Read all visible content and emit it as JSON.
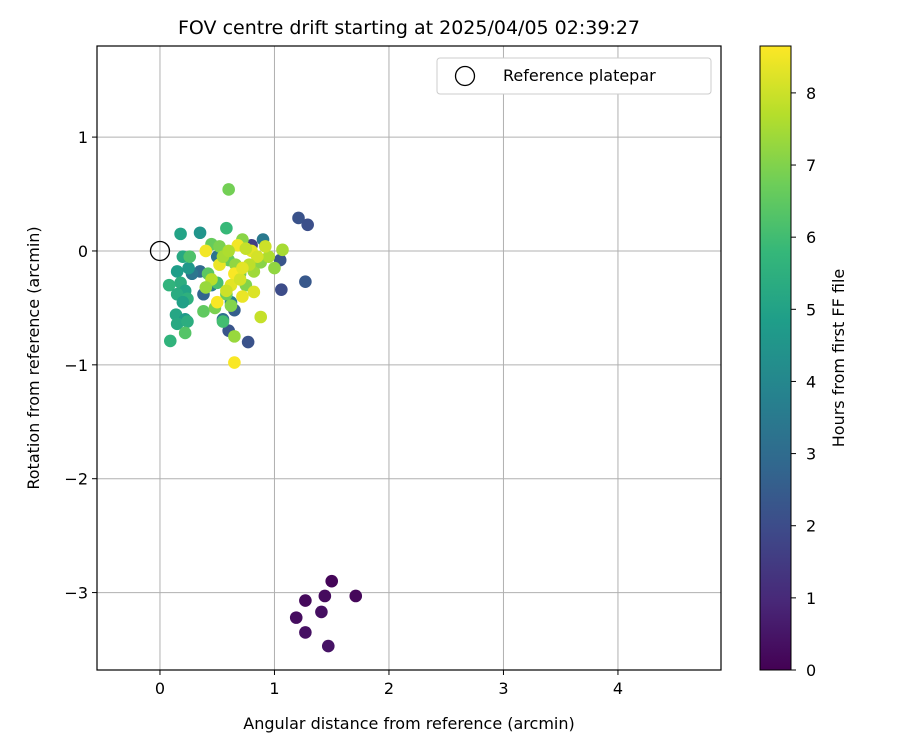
{
  "chart_data": {
    "type": "scatter",
    "title": "FOV centre drift starting at 2025/04/05 02:39:27",
    "xlabel": "Angular distance from reference (arcmin)",
    "ylabel": "Rotation from reference (arcmin)",
    "xlim": [
      -0.55,
      4.9
    ],
    "ylim": [
      -3.68,
      1.8
    ],
    "xticks": [
      0,
      1,
      2,
      3,
      4
    ],
    "xtick_labels": [
      "0",
      "1",
      "2",
      "3",
      "4"
    ],
    "yticks": [
      1,
      0,
      -1,
      -2,
      -3
    ],
    "ytick_labels": [
      "1",
      "0",
      "−1",
      "−2",
      "−3"
    ],
    "grid": true,
    "legend": {
      "position": "top-right",
      "entries": [
        "Reference platepar"
      ]
    },
    "reference_point": {
      "x": 0,
      "y": 0
    },
    "colorbar": {
      "label": "Hours from first FF file",
      "range": [
        0,
        8.65
      ],
      "ticks": [
        0,
        1,
        2,
        3,
        4,
        5,
        6,
        7,
        8
      ],
      "colormap": [
        "#440154",
        "#482878",
        "#3e4989",
        "#31688e",
        "#26828e",
        "#1f9e89",
        "#35b779",
        "#6ece58",
        "#b5de2b",
        "#fde725"
      ]
    },
    "points": [
      {
        "x": 1.5,
        "y": -2.9,
        "h": 0.1
      },
      {
        "x": 1.71,
        "y": -3.03,
        "h": 0.15
      },
      {
        "x": 1.27,
        "y": -3.07,
        "h": 0.2
      },
      {
        "x": 1.44,
        "y": -3.03,
        "h": 0.25
      },
      {
        "x": 1.19,
        "y": -3.22,
        "h": 0.3
      },
      {
        "x": 1.41,
        "y": -3.17,
        "h": 0.35
      },
      {
        "x": 1.27,
        "y": -3.35,
        "h": 0.4
      },
      {
        "x": 1.47,
        "y": -3.47,
        "h": 0.45
      },
      {
        "x": 0.8,
        "y": 0.05,
        "h": 1.6
      },
      {
        "x": 1.21,
        "y": 0.29,
        "h": 2.2
      },
      {
        "x": 1.29,
        "y": 0.23,
        "h": 2.1
      },
      {
        "x": 1.05,
        "y": -0.08,
        "h": 2.3
      },
      {
        "x": 1.27,
        "y": -0.27,
        "h": 2.4
      },
      {
        "x": 1.06,
        "y": -0.34,
        "h": 2.0
      },
      {
        "x": 0.77,
        "y": -0.8,
        "h": 2.2
      },
      {
        "x": 0.6,
        "y": -0.7,
        "h": 2.3
      },
      {
        "x": 0.65,
        "y": -0.52,
        "h": 2.6
      },
      {
        "x": 0.38,
        "y": -0.38,
        "h": 2.8
      },
      {
        "x": 0.35,
        "y": -0.18,
        "h": 3.0
      },
      {
        "x": 0.55,
        "y": -0.6,
        "h": 3.2
      },
      {
        "x": 0.28,
        "y": -0.2,
        "h": 3.4
      },
      {
        "x": 0.45,
        "y": -0.3,
        "h": 3.6
      },
      {
        "x": 0.62,
        "y": -0.45,
        "h": 3.8
      },
      {
        "x": 0.5,
        "y": -0.05,
        "h": 3.3
      },
      {
        "x": 0.9,
        "y": 0.1,
        "h": 3.5
      },
      {
        "x": 0.35,
        "y": 0.16,
        "h": 4.5
      },
      {
        "x": 0.18,
        "y": 0.15,
        "h": 5.0
      },
      {
        "x": 0.2,
        "y": -0.05,
        "h": 5.2
      },
      {
        "x": 0.15,
        "y": -0.18,
        "h": 4.8
      },
      {
        "x": 0.25,
        "y": -0.15,
        "h": 4.6
      },
      {
        "x": 0.18,
        "y": -0.28,
        "h": 5.4
      },
      {
        "x": 0.08,
        "y": -0.3,
        "h": 5.6
      },
      {
        "x": 0.22,
        "y": -0.35,
        "h": 5.0
      },
      {
        "x": 0.15,
        "y": -0.38,
        "h": 5.3
      },
      {
        "x": 0.24,
        "y": -0.42,
        "h": 5.5
      },
      {
        "x": 0.2,
        "y": -0.45,
        "h": 4.9
      },
      {
        "x": 0.14,
        "y": -0.56,
        "h": 5.1
      },
      {
        "x": 0.22,
        "y": -0.6,
        "h": 4.7
      },
      {
        "x": 0.15,
        "y": -0.64,
        "h": 5.2
      },
      {
        "x": 0.24,
        "y": -0.62,
        "h": 5.4
      },
      {
        "x": 0.09,
        "y": -0.79,
        "h": 5.6
      },
      {
        "x": 0.22,
        "y": -0.72,
        "h": 6.3
      },
      {
        "x": 0.38,
        "y": -0.53,
        "h": 6.5
      },
      {
        "x": 0.55,
        "y": -0.62,
        "h": 6.0
      },
      {
        "x": 0.65,
        "y": -0.75,
        "h": 7.3
      },
      {
        "x": 0.58,
        "y": 0.2,
        "h": 5.8
      },
      {
        "x": 0.6,
        "y": 0.54,
        "h": 6.8
      },
      {
        "x": 0.26,
        "y": -0.05,
        "h": 6.2
      },
      {
        "x": 0.45,
        "y": 0.06,
        "h": 6.6
      },
      {
        "x": 0.42,
        "y": -0.2,
        "h": 6.4
      },
      {
        "x": 0.5,
        "y": -0.28,
        "h": 6.1
      },
      {
        "x": 0.58,
        "y": -0.38,
        "h": 6.7
      },
      {
        "x": 0.48,
        "y": -0.5,
        "h": 6.9
      },
      {
        "x": 0.62,
        "y": -0.48,
        "h": 7.0
      },
      {
        "x": 0.72,
        "y": 0.1,
        "h": 7.1
      },
      {
        "x": 0.52,
        "y": 0.04,
        "h": 6.9
      },
      {
        "x": 0.6,
        "y": -0.08,
        "h": 6.6
      },
      {
        "x": 0.66,
        "y": -0.12,
        "h": 7.2
      },
      {
        "x": 0.7,
        "y": -0.2,
        "h": 6.8
      },
      {
        "x": 0.75,
        "y": -0.3,
        "h": 7.0
      },
      {
        "x": 0.82,
        "y": -0.18,
        "h": 7.4
      },
      {
        "x": 0.88,
        "y": -0.1,
        "h": 7.1
      },
      {
        "x": 0.95,
        "y": -0.05,
        "h": 7.6
      },
      {
        "x": 1.0,
        "y": -0.15,
        "h": 7.2
      },
      {
        "x": 1.07,
        "y": 0.01,
        "h": 7.5
      },
      {
        "x": 0.88,
        "y": -0.58,
        "h": 7.9
      },
      {
        "x": 0.92,
        "y": 0.04,
        "h": 8.0
      },
      {
        "x": 0.8,
        "y": 0.0,
        "h": 8.3
      },
      {
        "x": 0.85,
        "y": -0.05,
        "h": 8.1
      },
      {
        "x": 0.78,
        "y": -0.12,
        "h": 7.8
      },
      {
        "x": 0.82,
        "y": -0.36,
        "h": 8.2
      },
      {
        "x": 0.72,
        "y": -0.4,
        "h": 8.4
      },
      {
        "x": 0.68,
        "y": 0.05,
        "h": 8.5
      },
      {
        "x": 0.65,
        "y": -0.2,
        "h": 8.6
      },
      {
        "x": 0.62,
        "y": -0.3,
        "h": 8.3
      },
      {
        "x": 0.58,
        "y": -0.35,
        "h": 8.0
      },
      {
        "x": 0.52,
        "y": -0.12,
        "h": 8.4
      },
      {
        "x": 0.5,
        "y": -0.45,
        "h": 8.6
      },
      {
        "x": 0.4,
        "y": 0.0,
        "h": 8.5
      },
      {
        "x": 0.45,
        "y": -0.25,
        "h": 7.7
      },
      {
        "x": 0.55,
        "y": -0.05,
        "h": 7.5
      },
      {
        "x": 0.65,
        "y": -0.98,
        "h": 8.6
      },
      {
        "x": 0.7,
        "y": -0.25,
        "h": 8.1
      },
      {
        "x": 0.75,
        "y": 0.02,
        "h": 7.9
      },
      {
        "x": 0.4,
        "y": -0.32,
        "h": 7.3
      },
      {
        "x": 0.72,
        "y": -0.15,
        "h": 8.3
      },
      {
        "x": 0.6,
        "y": 0.0,
        "h": 7.6
      }
    ]
  }
}
